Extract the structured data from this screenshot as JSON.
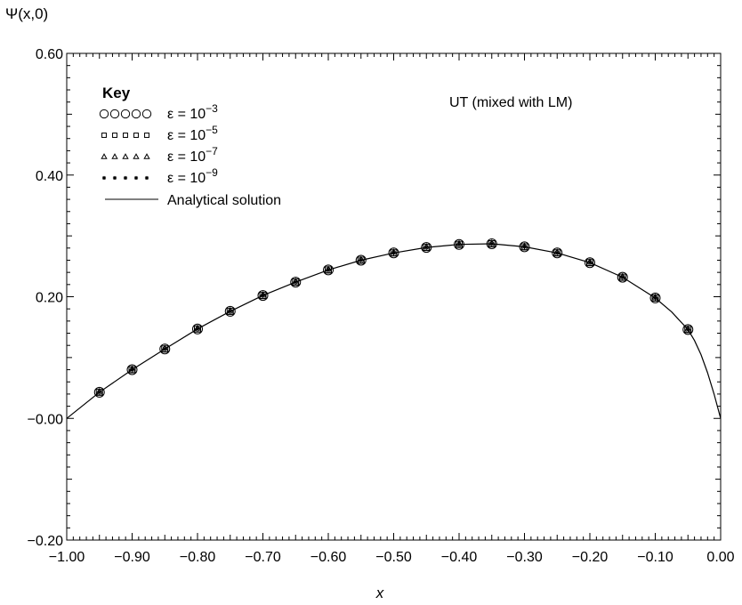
{
  "chart_data": {
    "type": "scatter",
    "ylabel": "Ψ(x,0)",
    "xlabel": "x",
    "xlim": [
      -1.0,
      0.0
    ],
    "ylim": [
      -0.2,
      0.6
    ],
    "x_ticks": [
      "−1.00",
      "−0.90",
      "−0.80",
      "−0.70",
      "−0.60",
      "−0.50",
      "−0.40",
      "−0.30",
      "−0.20",
      "−0.10",
      "0.00"
    ],
    "x_tick_values": [
      -1.0,
      -0.9,
      -0.8,
      -0.7,
      -0.6,
      -0.5,
      -0.4,
      -0.3,
      -0.2,
      -0.1,
      0.0
    ],
    "y_ticks": [
      "−0.20",
      "−0.00",
      "0.20",
      "0.40",
      "0.60"
    ],
    "y_tick_values": [
      -0.2,
      0.0,
      0.2,
      0.4,
      0.6
    ],
    "grid": false,
    "legend_title": "Key",
    "legend_placement": "top-left",
    "annotation": "UT (mixed with LM)",
    "series": [
      {
        "name": "ε = 10−3",
        "eps_base": "ε = 10",
        "eps_exp": "−3",
        "marker": "circle",
        "key_symbols": "○○○○○",
        "x": [
          -0.95,
          -0.9,
          -0.85,
          -0.8,
          -0.75,
          -0.7,
          -0.65,
          -0.6,
          -0.55,
          -0.5,
          -0.45,
          -0.4,
          -0.35,
          -0.3,
          -0.25,
          -0.2,
          -0.15,
          -0.1,
          -0.05
        ],
        "y": [
          0.043,
          0.08,
          0.114,
          0.147,
          0.176,
          0.202,
          0.224,
          0.244,
          0.26,
          0.272,
          0.281,
          0.286,
          0.287,
          0.282,
          0.272,
          0.256,
          0.232,
          0.198,
          0.146
        ]
      },
      {
        "name": "ε = 10−5",
        "eps_base": "ε = 10",
        "eps_exp": "−5",
        "marker": "square",
        "key_symbols": "□□□□□",
        "x": [
          -0.95,
          -0.9,
          -0.85,
          -0.8,
          -0.75,
          -0.7,
          -0.65,
          -0.6,
          -0.55,
          -0.5,
          -0.45,
          -0.4,
          -0.35,
          -0.3,
          -0.25,
          -0.2,
          -0.15,
          -0.1,
          -0.05
        ],
        "y": [
          0.043,
          0.08,
          0.114,
          0.147,
          0.176,
          0.202,
          0.224,
          0.244,
          0.26,
          0.272,
          0.281,
          0.286,
          0.287,
          0.282,
          0.272,
          0.256,
          0.232,
          0.198,
          0.146
        ]
      },
      {
        "name": "ε = 10−7",
        "eps_base": "ε = 10",
        "eps_exp": "−7",
        "marker": "triangle",
        "key_symbols": "△△△△△",
        "x": [
          -0.95,
          -0.9,
          -0.85,
          -0.8,
          -0.75,
          -0.7,
          -0.65,
          -0.6,
          -0.55,
          -0.5,
          -0.45,
          -0.4,
          -0.35,
          -0.3,
          -0.25,
          -0.2,
          -0.15,
          -0.1,
          -0.05
        ],
        "y": [
          0.043,
          0.08,
          0.114,
          0.147,
          0.176,
          0.202,
          0.224,
          0.244,
          0.26,
          0.272,
          0.281,
          0.286,
          0.287,
          0.282,
          0.272,
          0.256,
          0.232,
          0.198,
          0.146
        ]
      },
      {
        "name": "ε = 10−9",
        "eps_base": "ε = 10",
        "eps_exp": "−9",
        "marker": "star",
        "key_symbols": "*****",
        "x": [
          -0.95,
          -0.9,
          -0.85,
          -0.8,
          -0.75,
          -0.7,
          -0.65,
          -0.6,
          -0.55,
          -0.5,
          -0.45,
          -0.4,
          -0.35,
          -0.3,
          -0.25,
          -0.2,
          -0.15,
          -0.1,
          -0.05
        ],
        "y": [
          0.043,
          0.08,
          0.114,
          0.147,
          0.176,
          0.202,
          0.224,
          0.244,
          0.26,
          0.272,
          0.281,
          0.286,
          0.287,
          0.282,
          0.272,
          0.256,
          0.232,
          0.198,
          0.146
        ]
      },
      {
        "name": "Analytical solution",
        "marker": "line",
        "x": [
          -1.0,
          -0.95,
          -0.9,
          -0.85,
          -0.8,
          -0.75,
          -0.7,
          -0.65,
          -0.6,
          -0.55,
          -0.5,
          -0.45,
          -0.4,
          -0.35,
          -0.3,
          -0.25,
          -0.2,
          -0.15,
          -0.1,
          -0.075,
          -0.05,
          -0.04,
          -0.03,
          -0.02,
          -0.01,
          0.0
        ],
        "y": [
          0.0,
          0.043,
          0.08,
          0.114,
          0.147,
          0.176,
          0.202,
          0.224,
          0.244,
          0.26,
          0.272,
          0.281,
          0.286,
          0.287,
          0.282,
          0.272,
          0.256,
          0.232,
          0.198,
          0.175,
          0.146,
          0.128,
          0.105,
          0.075,
          0.04,
          0.0
        ]
      }
    ]
  }
}
